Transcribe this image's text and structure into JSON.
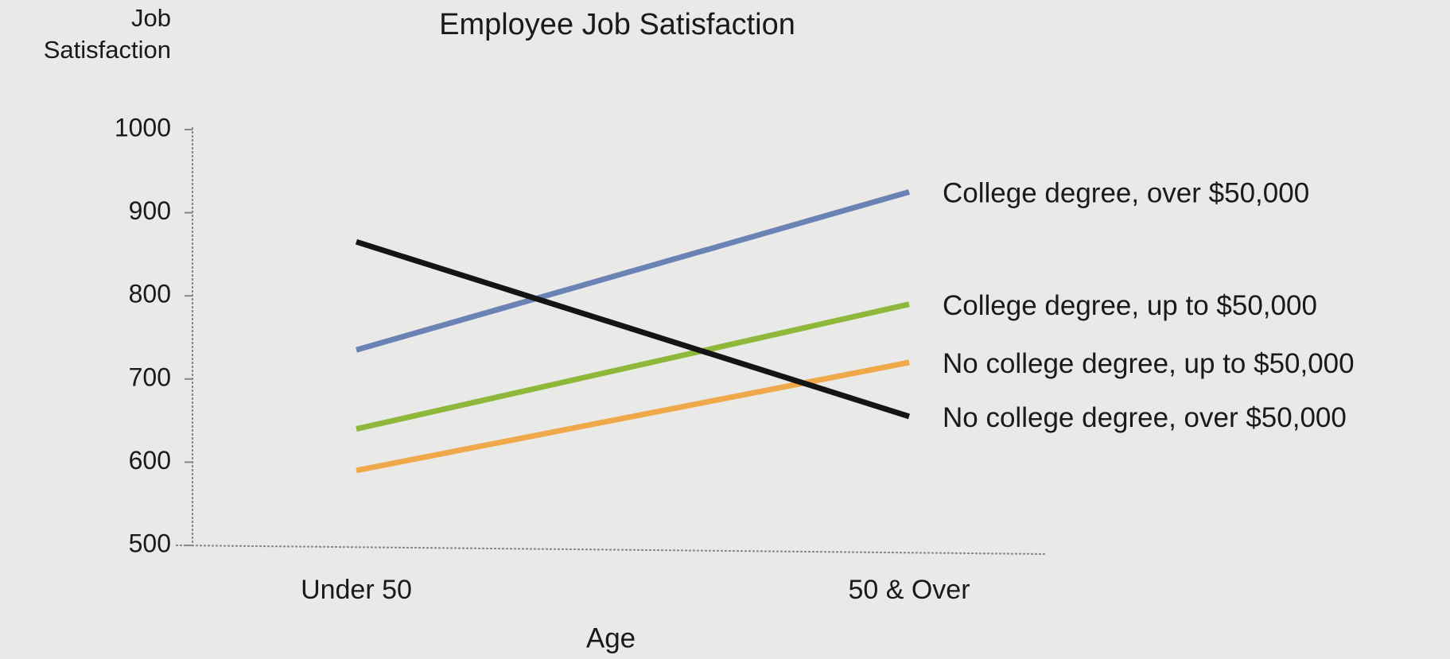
{
  "chart_data": {
    "type": "line",
    "title": "Employee Job Satisfaction",
    "ylabel": [
      "Job",
      "Satisfaction"
    ],
    "xlabel": "Age",
    "categories": [
      "Under 50",
      "50 & Over"
    ],
    "series": [
      {
        "name": "College degree, over $50,000",
        "color": "#6b82b5",
        "values": [
          735,
          925
        ]
      },
      {
        "name": "College degree, up to $50,000",
        "color": "#8db83a",
        "values": [
          640,
          790
        ]
      },
      {
        "name": "No college degree, up to $50,000",
        "color": "#f0a94a",
        "values": [
          590,
          720
        ]
      },
      {
        "name": "No college degree, over $50,000",
        "color": "#141414",
        "values": [
          865,
          655
        ]
      }
    ],
    "ylim": [
      500,
      1000
    ],
    "yticks": [
      500,
      600,
      700,
      800,
      900,
      1000
    ]
  }
}
